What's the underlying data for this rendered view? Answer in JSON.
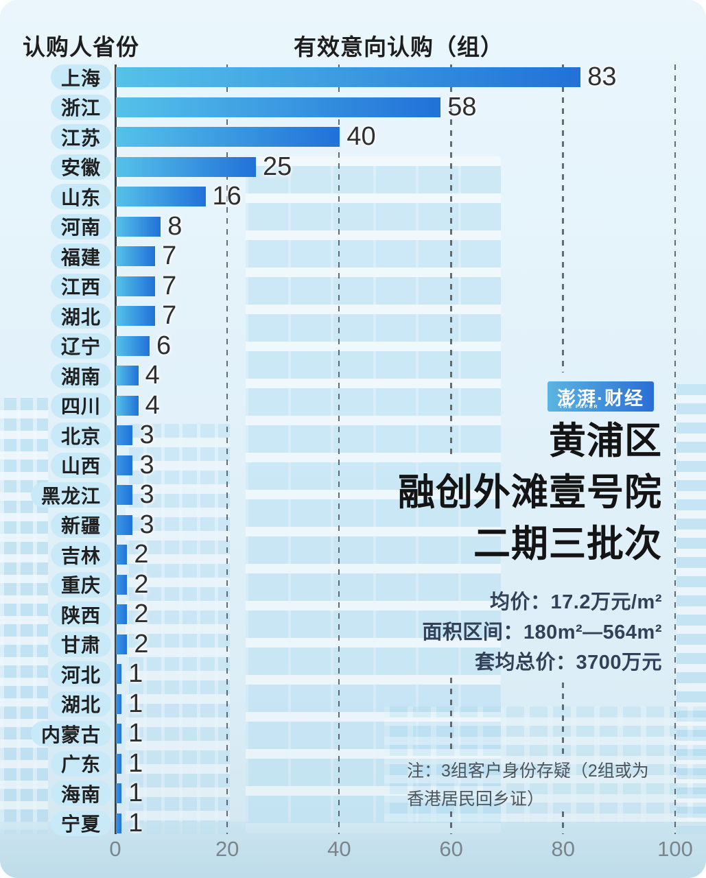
{
  "chart_data": {
    "type": "bar",
    "orientation": "horizontal",
    "column_header_left": "认购人省份",
    "column_header_right": "有效意向认购（组）",
    "categories": [
      "上海",
      "浙江",
      "江苏",
      "安徽",
      "山东",
      "河南",
      "福建",
      "江西",
      "湖北",
      "辽宁",
      "湖南",
      "四川",
      "北京",
      "山西",
      "黑龙江",
      "新疆",
      "吉林",
      "重庆",
      "陕西",
      "甘肃",
      "河北",
      "湖北",
      "内蒙古",
      "广东",
      "海南",
      "宁夏"
    ],
    "values": [
      83,
      58,
      40,
      25,
      16,
      8,
      7,
      7,
      7,
      6,
      4,
      4,
      3,
      3,
      3,
      3,
      2,
      2,
      2,
      2,
      1,
      1,
      1,
      1,
      1,
      1
    ],
    "xlim": [
      0,
      100
    ],
    "x_ticks": [
      0,
      20,
      40,
      60,
      80,
      100
    ],
    "grid": "dashed-vertical",
    "legend": "none",
    "bar_color_start": "#55c2e9",
    "bar_color_end": "#2171d8",
    "small_bar_color_start": "#3b97e4",
    "small_bar_color_end": "#2173d9"
  },
  "info": {
    "logo": {
      "brand": "澎湃·财经",
      "sub_brand": "THE PAPER",
      "bg_start": "#5bb5e2",
      "bg_end": "#2a6ed6"
    },
    "title_lines": [
      "黄浦区",
      "融创外滩壹号院",
      "二期三批次"
    ],
    "stats": [
      "均价：17.2万元/m²",
      "面积区间：180m²—564m²",
      "套均总价：3700万元"
    ],
    "note": "注：3组客户身份存疑（2组或为香港居民回乡证）"
  },
  "colors": {
    "background": "#e3f2fa",
    "pill_background": "#c8e9f7",
    "axis_line": "#3b4349",
    "tick_label": "#7b848b",
    "title_text": "#141414",
    "stats_text": "#324158",
    "note_text": "#4d555b"
  }
}
